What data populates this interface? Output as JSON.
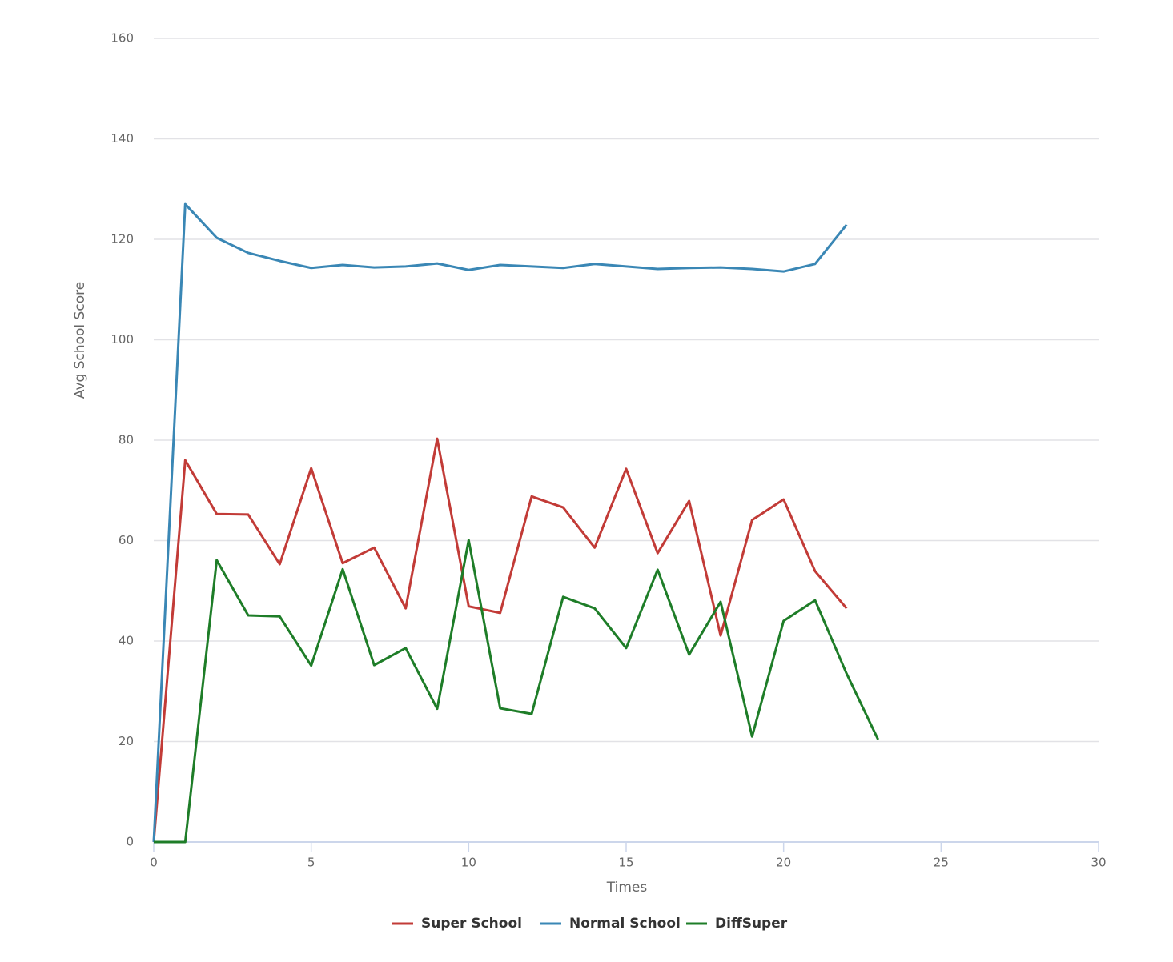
{
  "chart_data": {
    "type": "line",
    "x_label": "Times",
    "y_label": "Avg School Score",
    "x": [
      0,
      1,
      2,
      3,
      4,
      5,
      6,
      7,
      8,
      9,
      10,
      11,
      12,
      13,
      14,
      15,
      16,
      17,
      18,
      19,
      20,
      21,
      22,
      23
    ],
    "series": [
      {
        "name": "Super School",
        "color": "#c23b37",
        "values": [
          0,
          76,
          65.3,
          65.2,
          55.3,
          74.4,
          55.5,
          58.6,
          46.5,
          80.3,
          46.9,
          45.6,
          68.8,
          66.6,
          58.6,
          74.3,
          57.5,
          67.9,
          41.1,
          64.1,
          68.2,
          53.9,
          46.5,
          null
        ]
      },
      {
        "name": "Normal School",
        "color": "#3a87b5",
        "values": [
          0,
          127,
          120.3,
          117.3,
          115.7,
          114.3,
          114.9,
          114.4,
          114.6,
          115.2,
          113.9,
          114.9,
          114.6,
          114.3,
          115.1,
          114.6,
          114.1,
          114.3,
          114.4,
          114.1,
          113.6,
          115.1,
          122.9,
          null
        ]
      },
      {
        "name": "DiffSuper",
        "color": "#1e7d28",
        "values": [
          0,
          0,
          56.1,
          45.1,
          44.9,
          35.1,
          54.3,
          35.2,
          38.6,
          26.5,
          60.1,
          26.6,
          25.5,
          48.8,
          46.5,
          38.6,
          54.2,
          37.3,
          47.8,
          21.0,
          44.0,
          48.1,
          33.5,
          20.4
        ]
      }
    ],
    "xlim": [
      0,
      30
    ],
    "xticks": [
      0,
      5,
      10,
      15,
      20,
      25,
      30
    ],
    "ylim": [
      0,
      160
    ],
    "yticks": [
      0,
      20,
      40,
      60,
      80,
      100,
      120,
      140,
      160
    ],
    "grid": true,
    "legend": "bottom"
  }
}
